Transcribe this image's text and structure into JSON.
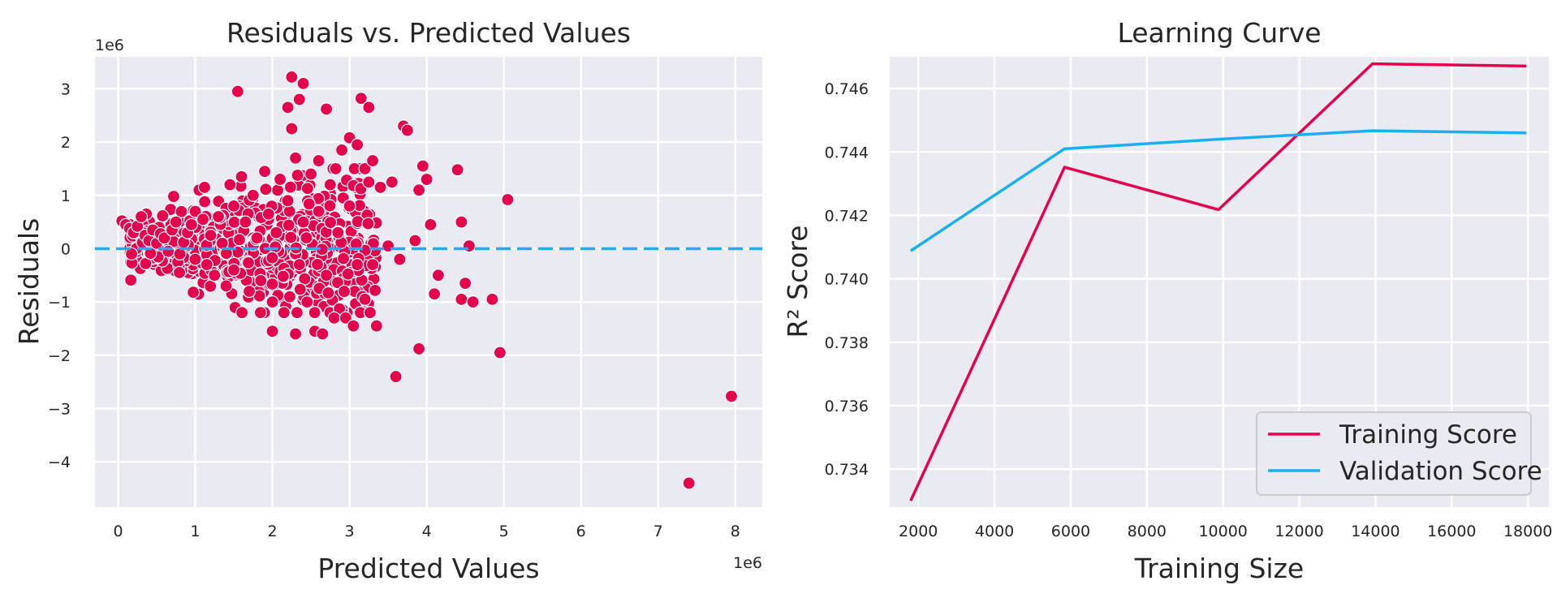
{
  "chart_data": [
    {
      "type": "scatter",
      "title": "Residuals vs. Predicted Values",
      "xlabel": "Predicted Values",
      "ylabel": "Residuals",
      "x_offset_label": "1e6",
      "y_offset_label": "1e6",
      "xlim": [
        -0.3,
        8.35
      ],
      "ylim": [
        -4.85,
        3.6
      ],
      "xticks": [
        0,
        1,
        2,
        3,
        4,
        5,
        6,
        7,
        8
      ],
      "yticks": [
        -4,
        -3,
        -2,
        -1,
        0,
        1,
        2,
        3
      ],
      "reference_line": {
        "y": 0,
        "style": "dashed",
        "color": "#1ab0f0"
      },
      "grid": true,
      "marker_color": "#e4044b",
      "points": [
        [
          0.05,
          0.52
        ],
        [
          0.1,
          0.45
        ],
        [
          0.15,
          0.38
        ],
        [
          0.2,
          0.3
        ],
        [
          0.25,
          0.42
        ],
        [
          0.3,
          0.6
        ],
        [
          0.35,
          0.25
        ],
        [
          0.4,
          0.15
        ],
        [
          0.45,
          0.35
        ],
        [
          0.5,
          0.1
        ],
        [
          0.55,
          0.28
        ],
        [
          0.6,
          0.2
        ],
        [
          0.65,
          -0.05
        ],
        [
          0.7,
          0.35
        ],
        [
          0.72,
          0.98
        ],
        [
          0.75,
          0.5
        ],
        [
          0.8,
          -0.1
        ],
        [
          0.85,
          0.12
        ],
        [
          0.9,
          0.3
        ],
        [
          0.95,
          0.45
        ],
        [
          1.0,
          0.7
        ],
        [
          1.0,
          -0.2
        ],
        [
          1.05,
          1.1
        ],
        [
          1.1,
          0.55
        ],
        [
          1.12,
          1.15
        ],
        [
          1.15,
          -0.3
        ],
        [
          1.2,
          0.25
        ],
        [
          1.25,
          -0.5
        ],
        [
          1.3,
          0.6
        ],
        [
          1.35,
          0.1
        ],
        [
          1.4,
          -0.7
        ],
        [
          1.45,
          1.2
        ],
        [
          1.5,
          0.8
        ],
        [
          1.5,
          -0.4
        ],
        [
          1.55,
          2.95
        ],
        [
          1.6,
          1.35
        ],
        [
          1.65,
          0.5
        ],
        [
          1.7,
          -0.8
        ],
        [
          1.75,
          1.0
        ],
        [
          1.8,
          0.2
        ],
        [
          1.85,
          -0.6
        ],
        [
          1.9,
          1.45
        ],
        [
          1.95,
          0.65
        ],
        [
          2.0,
          -1.0
        ],
        [
          2.0,
          -1.55
        ],
        [
          2.05,
          0.3
        ],
        [
          2.1,
          1.3
        ],
        [
          2.15,
          -1.2
        ],
        [
          2.2,
          2.65
        ],
        [
          2.2,
          0.9
        ],
        [
          2.25,
          3.22
        ],
        [
          2.25,
          2.25
        ],
        [
          2.3,
          -1.6
        ],
        [
          2.3,
          1.7
        ],
        [
          2.35,
          2.8
        ],
        [
          2.35,
          -0.3
        ],
        [
          2.4,
          3.1
        ],
        [
          2.4,
          0.5
        ],
        [
          2.45,
          -1.0
        ],
        [
          2.5,
          1.4
        ],
        [
          2.55,
          -1.55
        ],
        [
          2.6,
          0.7
        ],
        [
          2.6,
          1.65
        ],
        [
          2.65,
          -1.6
        ],
        [
          2.7,
          2.62
        ],
        [
          2.7,
          -0.5
        ],
        [
          2.75,
          1.2
        ],
        [
          2.8,
          -1.3
        ],
        [
          2.85,
          0.3
        ],
        [
          2.9,
          1.85
        ],
        [
          2.95,
          -1.3
        ],
        [
          3.0,
          2.08
        ],
        [
          3.0,
          0.8
        ],
        [
          3.05,
          -1.45
        ],
        [
          3.1,
          1.95
        ],
        [
          3.1,
          -0.3
        ],
        [
          3.15,
          2.82
        ],
        [
          3.2,
          -0.95
        ],
        [
          3.2,
          1.5
        ],
        [
          3.25,
          2.65
        ],
        [
          3.25,
          1.25
        ],
        [
          3.3,
          1.65
        ],
        [
          3.3,
          -0.3
        ],
        [
          3.35,
          -1.45
        ],
        [
          3.4,
          1.15
        ],
        [
          3.5,
          0.05
        ],
        [
          3.55,
          1.25
        ],
        [
          3.6,
          -2.4
        ],
        [
          3.65,
          -0.2
        ],
        [
          3.7,
          2.3
        ],
        [
          3.75,
          2.22
        ],
        [
          3.85,
          0.15
        ],
        [
          3.9,
          1.1
        ],
        [
          3.9,
          -1.88
        ],
        [
          3.95,
          1.55
        ],
        [
          4.0,
          1.3
        ],
        [
          4.05,
          0.45
        ],
        [
          4.1,
          -0.85
        ],
        [
          4.15,
          -0.5
        ],
        [
          4.4,
          1.48
        ],
        [
          4.45,
          -0.95
        ],
        [
          4.45,
          0.5
        ],
        [
          4.5,
          -0.65
        ],
        [
          4.55,
          0.05
        ],
        [
          4.6,
          -1.0
        ],
        [
          4.85,
          -0.95
        ],
        [
          4.95,
          -1.95
        ],
        [
          5.05,
          0.92
        ],
        [
          7.4,
          -4.4
        ],
        [
          7.95,
          -2.77
        ]
      ]
    },
    {
      "type": "line",
      "title": "Learning Curve",
      "xlabel": "Training Size",
      "ylabel": "R² Score",
      "xlim": [
        1250,
        18550
      ],
      "ylim": [
        0.7328,
        0.747
      ],
      "xticks": [
        2000,
        4000,
        6000,
        8000,
        10000,
        12000,
        14000,
        16000,
        18000
      ],
      "yticks": [
        0.734,
        0.736,
        0.738,
        0.74,
        0.742,
        0.744,
        0.746
      ],
      "legend_position": "lower-right",
      "grid": true,
      "x": [
        1800,
        5840,
        9880,
        13920,
        17960
      ],
      "series": [
        {
          "name": "Training Score",
          "color": "#e4044b",
          "values": [
            0.733,
            0.74352,
            0.74218,
            0.74678,
            0.74671
          ]
        },
        {
          "name": "Validation Score",
          "color": "#1ab0f0",
          "values": [
            0.74088,
            0.7441,
            0.7444,
            0.74467,
            0.7446
          ]
        }
      ]
    }
  ]
}
